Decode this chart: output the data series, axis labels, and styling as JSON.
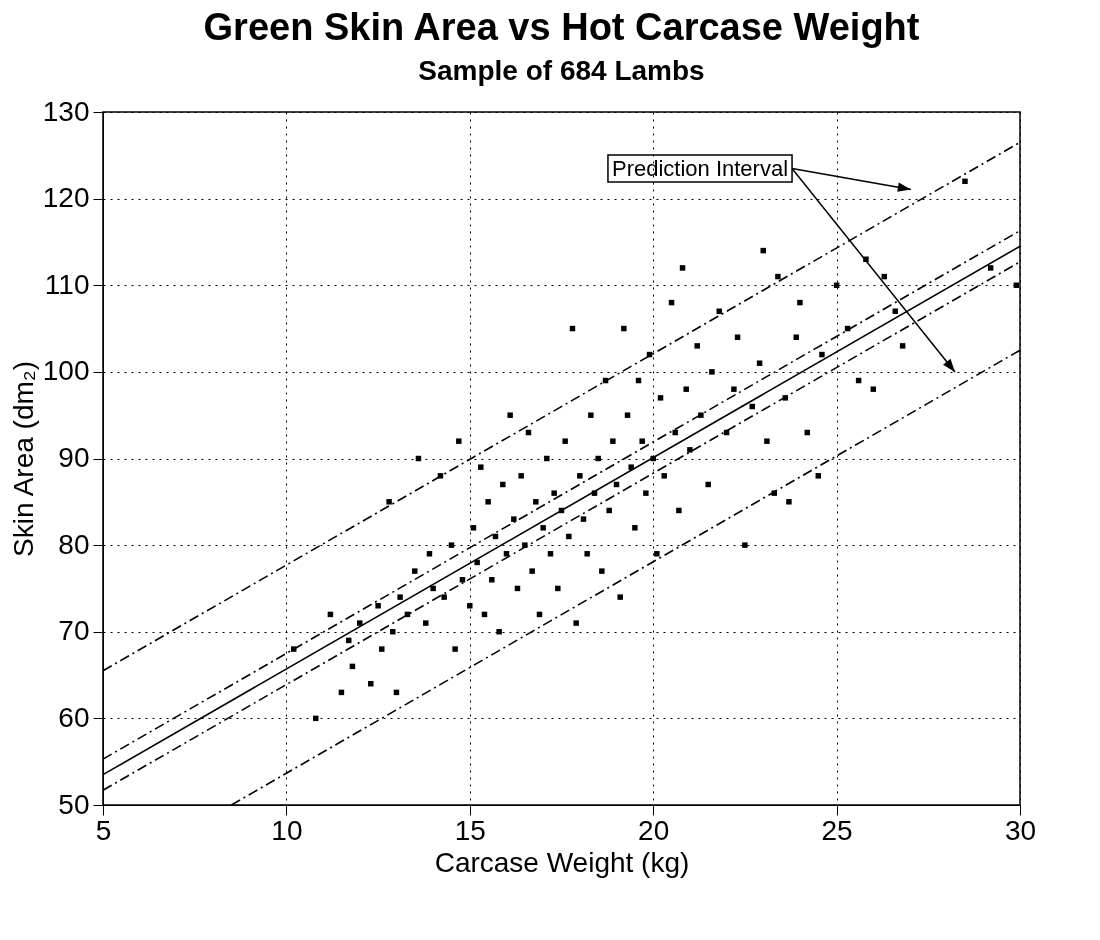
{
  "chart_data": {
    "type": "scatter",
    "title": "Green Skin Area vs Hot Carcase Weight",
    "subtitle": "Sample of 684 Lambs",
    "xlabel": "Carcase Weight (kg)",
    "ylabel": "Skin Area (dm₂)",
    "xlim": [
      5,
      30
    ],
    "ylim": [
      50,
      130
    ],
    "xticks": [
      5,
      10,
      15,
      20,
      25,
      30
    ],
    "yticks": [
      50,
      60,
      70,
      80,
      90,
      100,
      110,
      120,
      130
    ],
    "grid": true,
    "annotations": [
      "Prediction Interval"
    ],
    "series": [
      {
        "marker": "square",
        "color": "#000000",
        "x": [
          10.2,
          10.8,
          11.2,
          11.5,
          11.7,
          11.8,
          12.0,
          12.3,
          12.5,
          12.6,
          12.8,
          12.9,
          13.0,
          13.1,
          13.3,
          13.5,
          13.6,
          13.8,
          13.9,
          14.0,
          14.2,
          14.3,
          14.5,
          14.6,
          14.7,
          14.8,
          15.0,
          15.1,
          15.2,
          15.3,
          15.4,
          15.5,
          15.6,
          15.7,
          15.8,
          15.9,
          16.0,
          16.1,
          16.2,
          16.3,
          16.4,
          16.5,
          16.6,
          16.7,
          16.8,
          16.9,
          17.0,
          17.1,
          17.2,
          17.3,
          17.4,
          17.5,
          17.6,
          17.7,
          17.8,
          17.9,
          18.0,
          18.1,
          18.2,
          18.3,
          18.4,
          18.5,
          18.6,
          18.7,
          18.8,
          18.9,
          19.0,
          19.1,
          19.2,
          19.3,
          19.4,
          19.5,
          19.6,
          19.7,
          19.8,
          19.9,
          20.0,
          20.1,
          20.2,
          20.3,
          20.5,
          20.6,
          20.7,
          20.8,
          20.9,
          21.0,
          21.2,
          21.3,
          21.5,
          21.6,
          21.8,
          22.0,
          22.2,
          22.3,
          22.5,
          22.7,
          22.9,
          23.0,
          23.1,
          23.3,
          23.4,
          23.6,
          23.7,
          23.9,
          24.0,
          24.2,
          24.5,
          24.6,
          25.0,
          25.3,
          25.6,
          25.8,
          26.0,
          26.3,
          26.6,
          26.8,
          28.5,
          29.2,
          29.9
        ],
        "values": [
          68,
          60,
          72,
          63,
          69,
          66,
          71,
          64,
          73,
          68,
          85,
          70,
          63,
          74,
          72,
          77,
          90,
          71,
          79,
          75,
          88,
          74,
          80,
          68,
          92,
          76,
          73,
          82,
          78,
          89,
          72,
          85,
          76,
          81,
          70,
          87,
          79,
          95,
          83,
          75,
          88,
          80,
          93,
          77,
          85,
          72,
          82,
          90,
          79,
          86,
          75,
          84,
          92,
          81,
          105,
          71,
          88,
          83,
          79,
          95,
          86,
          90,
          77,
          99,
          84,
          92,
          87,
          74,
          105,
          95,
          89,
          82,
          99,
          92,
          86,
          102,
          90,
          79,
          97,
          88,
          108,
          93,
          84,
          112,
          98,
          91,
          103,
          95,
          87,
          100,
          107,
          93,
          98,
          104,
          80,
          96,
          101,
          114,
          92,
          86,
          111,
          97,
          85,
          104,
          108,
          93,
          88,
          102,
          110,
          105,
          99,
          113,
          98,
          111,
          107,
          103,
          122,
          112,
          110
        ]
      },
      {
        "type": "line",
        "line_style": "solid",
        "color": "#000000",
        "x": [
          5,
          30
        ],
        "values": [
          53.5,
          114.5
        ]
      },
      {
        "type": "line",
        "line_style": "dashed",
        "color": "#000000",
        "x": [
          5,
          30
        ],
        "values": [
          55.3,
          116.3
        ]
      },
      {
        "type": "line",
        "line_style": "dashed",
        "color": "#000000",
        "x": [
          5,
          30
        ],
        "values": [
          51.7,
          112.7
        ]
      },
      {
        "type": "line",
        "line_style": "dashed",
        "color": "#000000",
        "x": [
          5,
          30
        ],
        "values": [
          65.5,
          126.5
        ]
      },
      {
        "type": "line",
        "line_style": "dashed",
        "color": "#000000",
        "x": [
          8.5,
          30
        ],
        "values": [
          50,
          102.5
        ]
      }
    ]
  }
}
